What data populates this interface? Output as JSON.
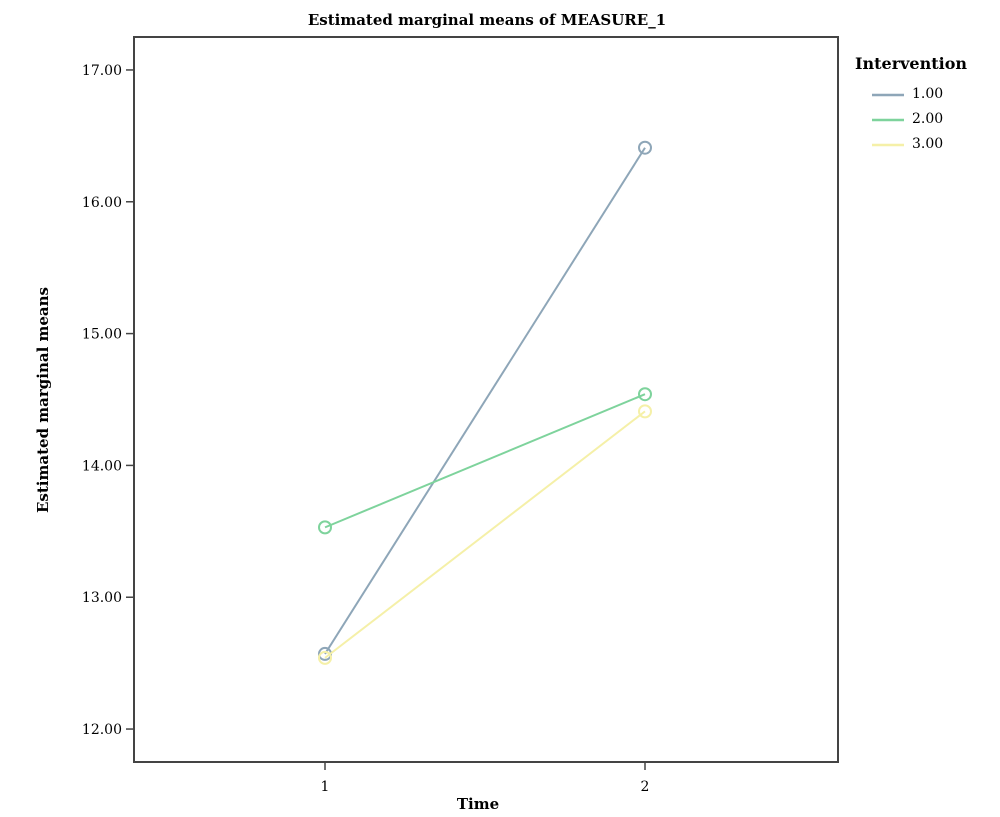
{
  "chart_data": {
    "type": "line",
    "title": "Estimated marginal means of MEASURE_1",
    "xlabel": "Time",
    "ylabel": "Estimated marginal means",
    "categories": [
      "1",
      "2"
    ],
    "ylim": [
      11.75,
      17.25
    ],
    "yticks": [
      "12.00",
      "13.00",
      "14.00",
      "15.00",
      "16.00",
      "17.00"
    ],
    "grid": false,
    "legend_position": "top-right",
    "legend_title": "Intervention",
    "series": [
      {
        "name": "1.00",
        "values": [
          12.57,
          16.41
        ],
        "color": "#8ea6b8"
      },
      {
        "name": "2.00",
        "values": [
          13.53,
          14.54
        ],
        "color": "#7ed39c"
      },
      {
        "name": "3.00",
        "values": [
          12.54,
          14.41
        ],
        "color": "#f5f0a8"
      }
    ]
  }
}
